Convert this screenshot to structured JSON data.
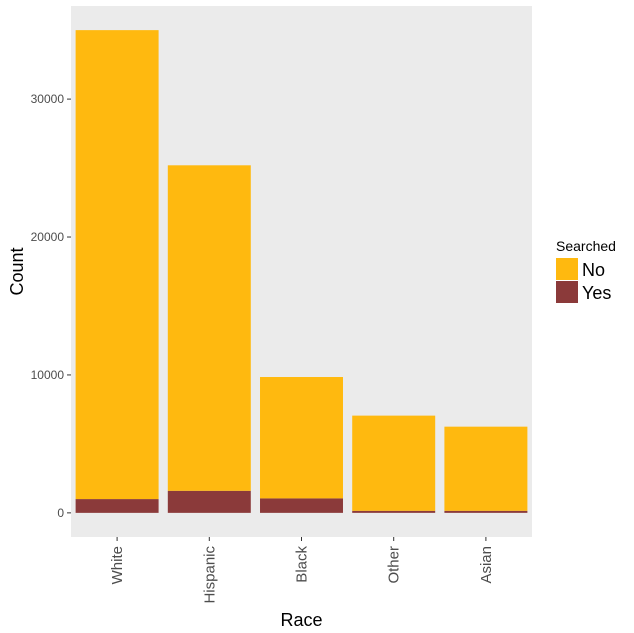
{
  "chart_data": {
    "type": "bar",
    "stacked": true,
    "categories": [
      "White",
      "Hispanic",
      "Black",
      "Other",
      "Asian"
    ],
    "series": [
      {
        "name": "No",
        "color": "#FFB90F",
        "values": [
          34000,
          23600,
          8800,
          6900,
          6100
        ]
      },
      {
        "name": "Yes",
        "color": "#8B3A3A",
        "values": [
          1000,
          1600,
          1050,
          150,
          150
        ]
      }
    ],
    "xlabel": "Race",
    "ylabel": "Count",
    "ylim": [
      -1750,
      36750
    ],
    "yticks": [
      0,
      10000,
      20000,
      30000
    ],
    "ytick_labels": [
      "0",
      "10000",
      "20000",
      "30000"
    ],
    "legend": {
      "title": "Searched",
      "position": "right"
    },
    "panel_background": "#EBEBEB",
    "grid": false
  }
}
